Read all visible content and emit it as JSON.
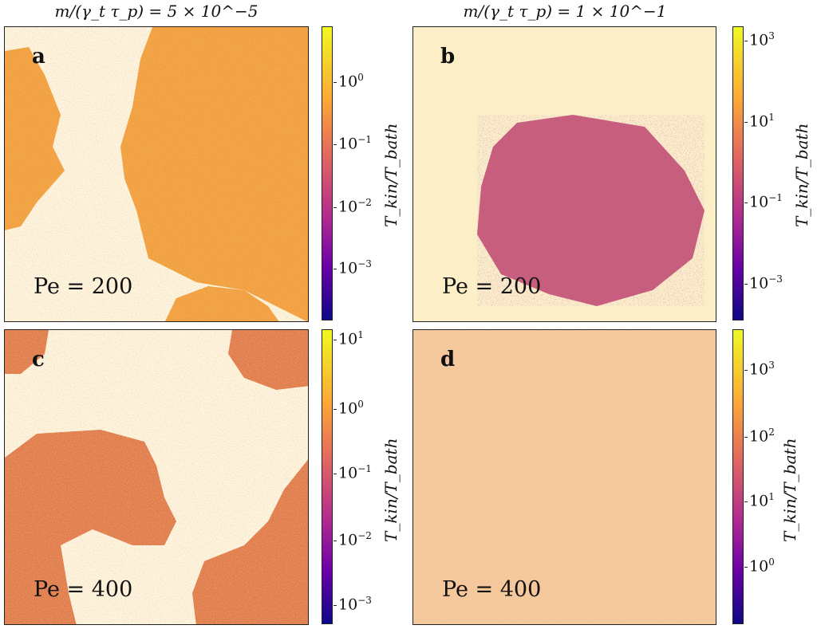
{
  "columns": [
    {
      "title": "m/(γ_t τ_p) = 5 × 10^−5"
    },
    {
      "title": "m/(γ_t τ_p) = 1 × 10^−1"
    }
  ],
  "panels": [
    {
      "letter": "a",
      "pe_label": "Pe = 200",
      "colorbar": {
        "label": "T_kin/T_bath",
        "ticks": [
          {
            "base": "10",
            "exp": "0"
          },
          {
            "base": "10",
            "exp": "−1"
          },
          {
            "base": "10",
            "exp": "−2"
          },
          {
            "base": "10",
            "exp": "−3"
          }
        ]
      }
    },
    {
      "letter": "b",
      "pe_label": "Pe = 200",
      "colorbar": {
        "label": "T_kin/T_bath",
        "ticks": [
          {
            "base": "10",
            "exp": "3"
          },
          {
            "base": "10",
            "exp": "1"
          },
          {
            "base": "10",
            "exp": "−1"
          },
          {
            "base": "10",
            "exp": "−3"
          }
        ]
      }
    },
    {
      "letter": "c",
      "pe_label": "Pe = 400",
      "colorbar": {
        "label": "T_kin/T_bath",
        "ticks": [
          {
            "base": "10",
            "exp": "1"
          },
          {
            "base": "10",
            "exp": "0"
          },
          {
            "base": "10",
            "exp": "−1"
          },
          {
            "base": "10",
            "exp": "−2"
          },
          {
            "base": "10",
            "exp": "−3"
          }
        ]
      }
    },
    {
      "letter": "d",
      "pe_label": "Pe = 400",
      "colorbar": {
        "label": "T_kin/T_bath",
        "ticks": [
          {
            "base": "10",
            "exp": "3"
          },
          {
            "base": "10",
            "exp": "2"
          },
          {
            "base": "10",
            "exp": "1"
          },
          {
            "base": "10",
            "exp": "0"
          }
        ]
      }
    }
  ],
  "colormap": "plasma",
  "colors": {
    "background": "#fdf6e3",
    "dense_a": "#f2a03c",
    "dense_b": "#c85e78",
    "dense_c": "#e07b4e",
    "dilute_d": "#f5c79c"
  }
}
